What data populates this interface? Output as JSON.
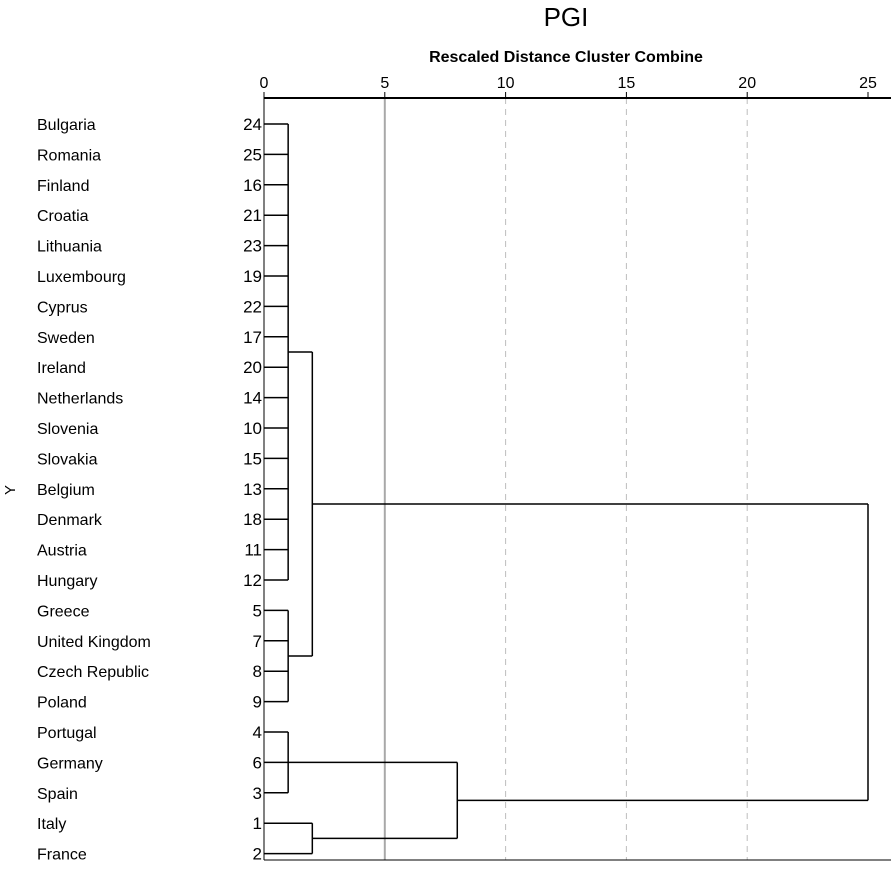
{
  "chart_data": {
    "type": "dendrogram",
    "title": "PGI",
    "subtitle": "Rescaled Distance Cluster Combine",
    "ylabel": "Y",
    "xlim": [
      0,
      25
    ],
    "x_ticks": [
      0,
      5,
      10,
      15,
      20,
      25
    ],
    "grid": "dashed vertical at 10, 15, 20",
    "reference_line_at": 5,
    "leaves": [
      {
        "label": "Bulgaria",
        "id": "24"
      },
      {
        "label": "Romania",
        "id": "25"
      },
      {
        "label": "Finland",
        "id": "16"
      },
      {
        "label": "Croatia",
        "id": "21"
      },
      {
        "label": "Lithuania",
        "id": "23"
      },
      {
        "label": "Luxembourg",
        "id": "19"
      },
      {
        "label": "Cyprus",
        "id": "22"
      },
      {
        "label": "Sweden",
        "id": "17"
      },
      {
        "label": "Ireland",
        "id": "20"
      },
      {
        "label": "Netherlands",
        "id": "14"
      },
      {
        "label": "Slovenia",
        "id": "10"
      },
      {
        "label": "Slovakia",
        "id": "15"
      },
      {
        "label": "Belgium",
        "id": "13"
      },
      {
        "label": "Denmark",
        "id": "18"
      },
      {
        "label": "Austria",
        "id": "11"
      },
      {
        "label": "Hungary",
        "id": "12"
      },
      {
        "label": "Greece",
        "id": "5"
      },
      {
        "label": "United Kingdom",
        "id": "7"
      },
      {
        "label": "Czech Republic",
        "id": "8"
      },
      {
        "label": "Poland",
        "id": "9"
      },
      {
        "label": "Portugal",
        "id": "4"
      },
      {
        "label": "Germany",
        "id": "6"
      },
      {
        "label": "Spain",
        "id": "3"
      },
      {
        "label": "Italy",
        "id": "1"
      },
      {
        "label": "France",
        "id": "2"
      }
    ],
    "merges": [
      {
        "children": [
          "leaf:0",
          "leaf:1",
          "leaf:2",
          "leaf:3",
          "leaf:4",
          "leaf:5",
          "leaf:6",
          "leaf:7",
          "leaf:8",
          "leaf:9",
          "leaf:10",
          "leaf:11",
          "leaf:12",
          "leaf:13",
          "leaf:14",
          "leaf:15"
        ],
        "height": 1
      },
      {
        "children": [
          "leaf:16",
          "leaf:17",
          "leaf:18",
          "leaf:19"
        ],
        "height": 1
      },
      {
        "children": [
          "leaf:20",
          "leaf:21",
          "leaf:22"
        ],
        "height": 1
      },
      {
        "children": [
          "leaf:23",
          "leaf:24"
        ],
        "height": 2
      },
      {
        "children": [
          "node:0",
          "node:1"
        ],
        "height": 2
      },
      {
        "children": [
          "node:2",
          "node:3"
        ],
        "height": 8
      },
      {
        "children": [
          "node:4",
          "node:5"
        ],
        "height": 25
      }
    ]
  }
}
